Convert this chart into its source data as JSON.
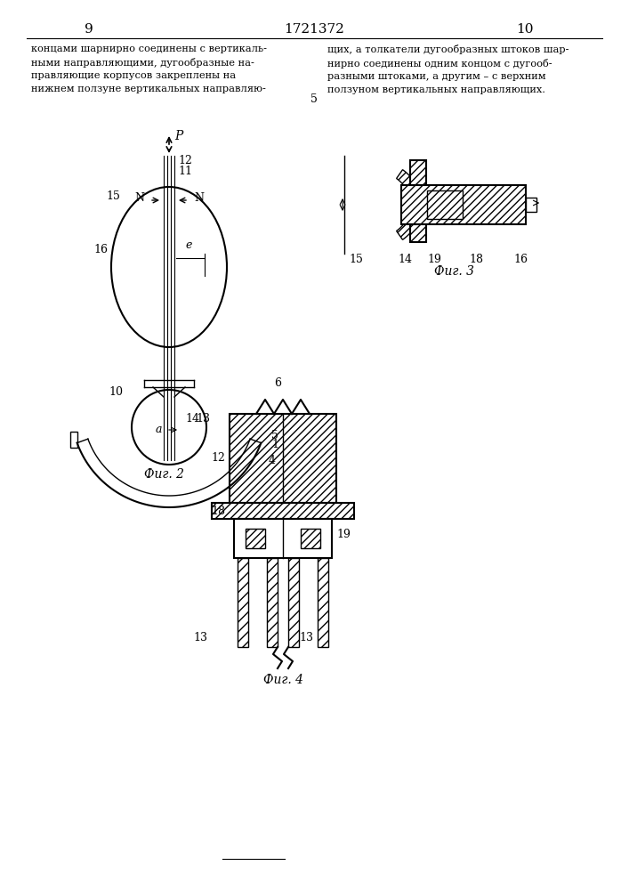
{
  "page_numbers": [
    "9",
    "1721372",
    "10"
  ],
  "text_left": "концами шарнирно соединены с вертикаль-\nными направляющими, дугообразные на-\nправляющие корпусов закреплены на\nнижнем ползуне вертикальных направляю-",
  "text_right": "щих, а толкатели дугообразных штоков шар-\nнирно соединены одним концом с дугооб-\nразными штоками, а другим – с верхним\nползуном вертикальных направляющих.",
  "text_num": "5",
  "fig2_caption": "Фиг. 2",
  "fig3_caption": "Фиг. 3",
  "fig4_caption": "Фиг. 4",
  "line_color": "#000000",
  "bg_color": "#ffffff"
}
